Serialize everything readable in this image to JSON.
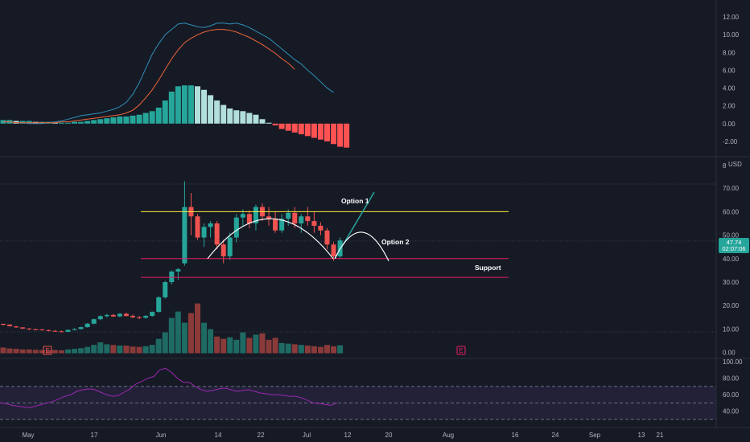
{
  "chart_data": [
    {
      "type": "bar",
      "pane": "macd",
      "y_ticks": [
        "12.00",
        "10.00",
        "8.00",
        "6.00",
        "4.00",
        "2.00",
        "0.00",
        "-2.00"
      ],
      "ylim": [
        -3,
        13
      ],
      "histogram": [
        0.4,
        0.4,
        0.3,
        0.3,
        0.3,
        0.2,
        0.2,
        0.2,
        0.1,
        0.1,
        0.1,
        0.2,
        0.2,
        0.3,
        0.4,
        0.5,
        0.6,
        0.7,
        0.8,
        0.8,
        0.9,
        1.0,
        1.2,
        1.4,
        1.8,
        2.6,
        3.6,
        4.2,
        4.3,
        4.3,
        4.2,
        3.8,
        3.2,
        2.6,
        2.1,
        1.7,
        1.5,
        1.4,
        1.2,
        1.0,
        0.5,
        0.1,
        -0.2,
        -0.6,
        -0.8,
        -1.0,
        -1.2,
        -1.4,
        -1.6,
        -1.8,
        -2.0,
        -2.3,
        -2.6,
        -2.7
      ],
      "macd_line": [
        0.2,
        0.2,
        0.1,
        0.1,
        0.0,
        0.0,
        0.0,
        0.1,
        0.2,
        0.3,
        0.5,
        0.7,
        0.9,
        1.0,
        1.1,
        1.2,
        1.4,
        1.6,
        1.9,
        2.4,
        3.3,
        4.6,
        6.2,
        7.8,
        9.0,
        10.0,
        10.6,
        11.2,
        11.3,
        11.1,
        10.9,
        10.8,
        11.0,
        11.3,
        11.3,
        11.2,
        11.3,
        11.1,
        10.8,
        10.4,
        10.0,
        9.6,
        9.0,
        8.4,
        7.8,
        7.2,
        6.7,
        6.0,
        5.4,
        4.7,
        4.0,
        3.5
      ],
      "signal_line": [
        0.2,
        0.2,
        0.1,
        0.1,
        0.1,
        0.1,
        0.1,
        0.1,
        0.1,
        0.2,
        0.2,
        0.3,
        0.4,
        0.5,
        0.6,
        0.7,
        0.8,
        0.9,
        1.0,
        1.2,
        1.5,
        2.1,
        2.9,
        3.8,
        4.9,
        6.1,
        7.3,
        8.3,
        9.1,
        9.6,
        10.0,
        10.3,
        10.5,
        10.6,
        10.6,
        10.5,
        10.3,
        10.0,
        9.7,
        9.3,
        8.9,
        8.4,
        7.9,
        7.3,
        6.8,
        6.1
      ]
    },
    {
      "type": "candlestick",
      "pane": "price",
      "y_ticks": [
        "70.00",
        "60.00",
        "50.00",
        "40.00",
        "30.00",
        "20.00",
        "10.00",
        "0.00"
      ],
      "ylim": [
        -1.5,
        80
      ],
      "x_ticks": [
        "May",
        "17",
        "Jun",
        "14",
        "22",
        "Jul",
        "12",
        "20",
        "Aug",
        "16",
        "24",
        "Sep",
        "13",
        "21"
      ],
      "last_price": "47.74",
      "countdown": "02:07:06",
      "currency": "USD",
      "resistance": 60,
      "support": 40,
      "lower_line": 32,
      "candles_ohlc": [
        [
          12.2,
          12.3,
          11.5,
          11.8
        ],
        [
          11.9,
          12.0,
          11.1,
          11.2
        ],
        [
          11.1,
          11.3,
          10.5,
          10.7
        ],
        [
          10.7,
          10.8,
          10.0,
          10.2
        ],
        [
          10.2,
          10.4,
          9.6,
          9.9
        ],
        [
          9.9,
          10.2,
          9.5,
          9.8
        ],
        [
          9.8,
          10.0,
          9.3,
          9.5
        ],
        [
          9.5,
          9.8,
          9.0,
          9.2
        ],
        [
          9.2,
          9.6,
          8.8,
          9.0
        ],
        [
          9.0,
          9.4,
          8.6,
          8.8
        ],
        [
          8.8,
          9.8,
          8.6,
          9.6
        ],
        [
          9.6,
          10.3,
          9.4,
          10.0
        ],
        [
          10.0,
          11.0,
          9.8,
          10.8
        ],
        [
          10.8,
          12.5,
          10.6,
          12.3
        ],
        [
          12.3,
          14.5,
          12.0,
          14.2
        ],
        [
          14.2,
          15.8,
          13.8,
          15.5
        ],
        [
          15.5,
          16.5,
          14.9,
          16.0
        ],
        [
          16.0,
          16.4,
          15.0,
          15.4
        ],
        [
          15.4,
          16.8,
          15.0,
          16.5
        ],
        [
          16.5,
          17.0,
          15.3,
          15.6
        ],
        [
          15.6,
          16.2,
          14.6,
          15.0
        ],
        [
          15.0,
          15.6,
          14.2,
          14.8
        ],
        [
          14.8,
          16.0,
          14.4,
          15.6
        ],
        [
          15.6,
          17.5,
          15.2,
          17.3
        ],
        [
          17.3,
          24.0,
          17.0,
          23.5
        ],
        [
          23.5,
          30.5,
          23.0,
          30.0
        ],
        [
          30.0,
          35.0,
          29.0,
          34.5
        ],
        [
          34.5,
          36.0,
          31.0,
          35.5
        ],
        [
          38.0,
          73.0,
          37.0,
          62.0
        ],
        [
          62.0,
          68.0,
          50.0,
          58.0
        ],
        [
          58.0,
          59.0,
          48.0,
          49.0
        ],
        [
          49.0,
          55.0,
          45.0,
          53.5
        ],
        [
          53.5,
          56.0,
          49.0,
          55.0
        ],
        [
          55.0,
          56.0,
          44.0,
          46.0
        ],
        [
          46.0,
          48.0,
          38.0,
          41.0
        ],
        [
          41.0,
          51.0,
          39.5,
          49.0
        ],
        [
          49.0,
          59.0,
          47.0,
          57.5
        ],
        [
          57.5,
          61.0,
          54.0,
          59.0
        ],
        [
          59.0,
          60.5,
          53.0,
          55.0
        ],
        [
          55.0,
          63.0,
          52.0,
          62.0
        ],
        [
          62.0,
          63.5,
          56.0,
          58.0
        ],
        [
          58.0,
          62.0,
          54.0,
          57.0
        ],
        [
          57.0,
          60.0,
          51.0,
          52.0
        ],
        [
          52.0,
          59.0,
          51.0,
          57.0
        ],
        [
          57.0,
          61.0,
          54.0,
          59.5
        ],
        [
          59.5,
          62.0,
          53.0,
          55.0
        ],
        [
          55.0,
          59.0,
          51.0,
          58.0
        ],
        [
          58.0,
          62.0,
          54.0,
          56.0
        ],
        [
          56.0,
          60.0,
          51.0,
          54.0
        ],
        [
          54.0,
          55.5,
          50.0,
          52.0
        ],
        [
          52.0,
          53.0,
          44.0,
          46.0
        ],
        [
          46.0,
          47.0,
          39.0,
          41.0
        ],
        [
          41.0,
          49.0,
          40.0,
          47.74
        ]
      ],
      "volume": [
        1.8,
        1.5,
        1.4,
        1.2,
        1.2,
        1.1,
        1.0,
        1.0,
        1.0,
        0.9,
        1.2,
        1.4,
        1.6,
        2.0,
        2.6,
        3.4,
        2.8,
        2.6,
        2.4,
        2.4,
        2.1,
        2.0,
        2.2,
        2.6,
        4.5,
        6.5,
        11.0,
        13.0,
        9.5,
        12.5,
        15.5,
        9.5,
        7.5,
        5.2,
        4.5,
        5.0,
        4.2,
        6.5,
        4.8,
        5.8,
        6.2,
        4.2,
        4.8,
        3.2,
        3.0,
        2.8,
        2.6,
        2.4,
        2.2,
        2.0,
        2.6,
        2.2,
        2.5
      ],
      "annotations": {
        "option1": "Option 1",
        "option2": "Option 2",
        "support": "Support"
      },
      "earnings_markers": [
        "E",
        "E"
      ],
      "colors": {
        "up": "#26a69a",
        "down": "#ef5350",
        "resistance": "#ffeb3b",
        "support": "#e91e63",
        "projection_up": "#26a69a",
        "projection_curve": "#ffffff"
      }
    },
    {
      "type": "line",
      "pane": "rsi",
      "y_ticks": [
        "100.00",
        "80.00",
        "60.00",
        "40.00"
      ],
      "ylim": [
        22,
        102
      ],
      "levels": [
        70,
        50,
        30
      ],
      "values": [
        50,
        49,
        47,
        46,
        45,
        44,
        46,
        48,
        50,
        52,
        55,
        58,
        60,
        64,
        66,
        67,
        66,
        63,
        60,
        58,
        59,
        63,
        67,
        73,
        76,
        80,
        82,
        90,
        92,
        87,
        80,
        75,
        75,
        70,
        66,
        64,
        65,
        67,
        68,
        66,
        64,
        65,
        66,
        64,
        62,
        61,
        60,
        60,
        59,
        58,
        58,
        56,
        53,
        50,
        49,
        48,
        47,
        50
      ]
    }
  ]
}
